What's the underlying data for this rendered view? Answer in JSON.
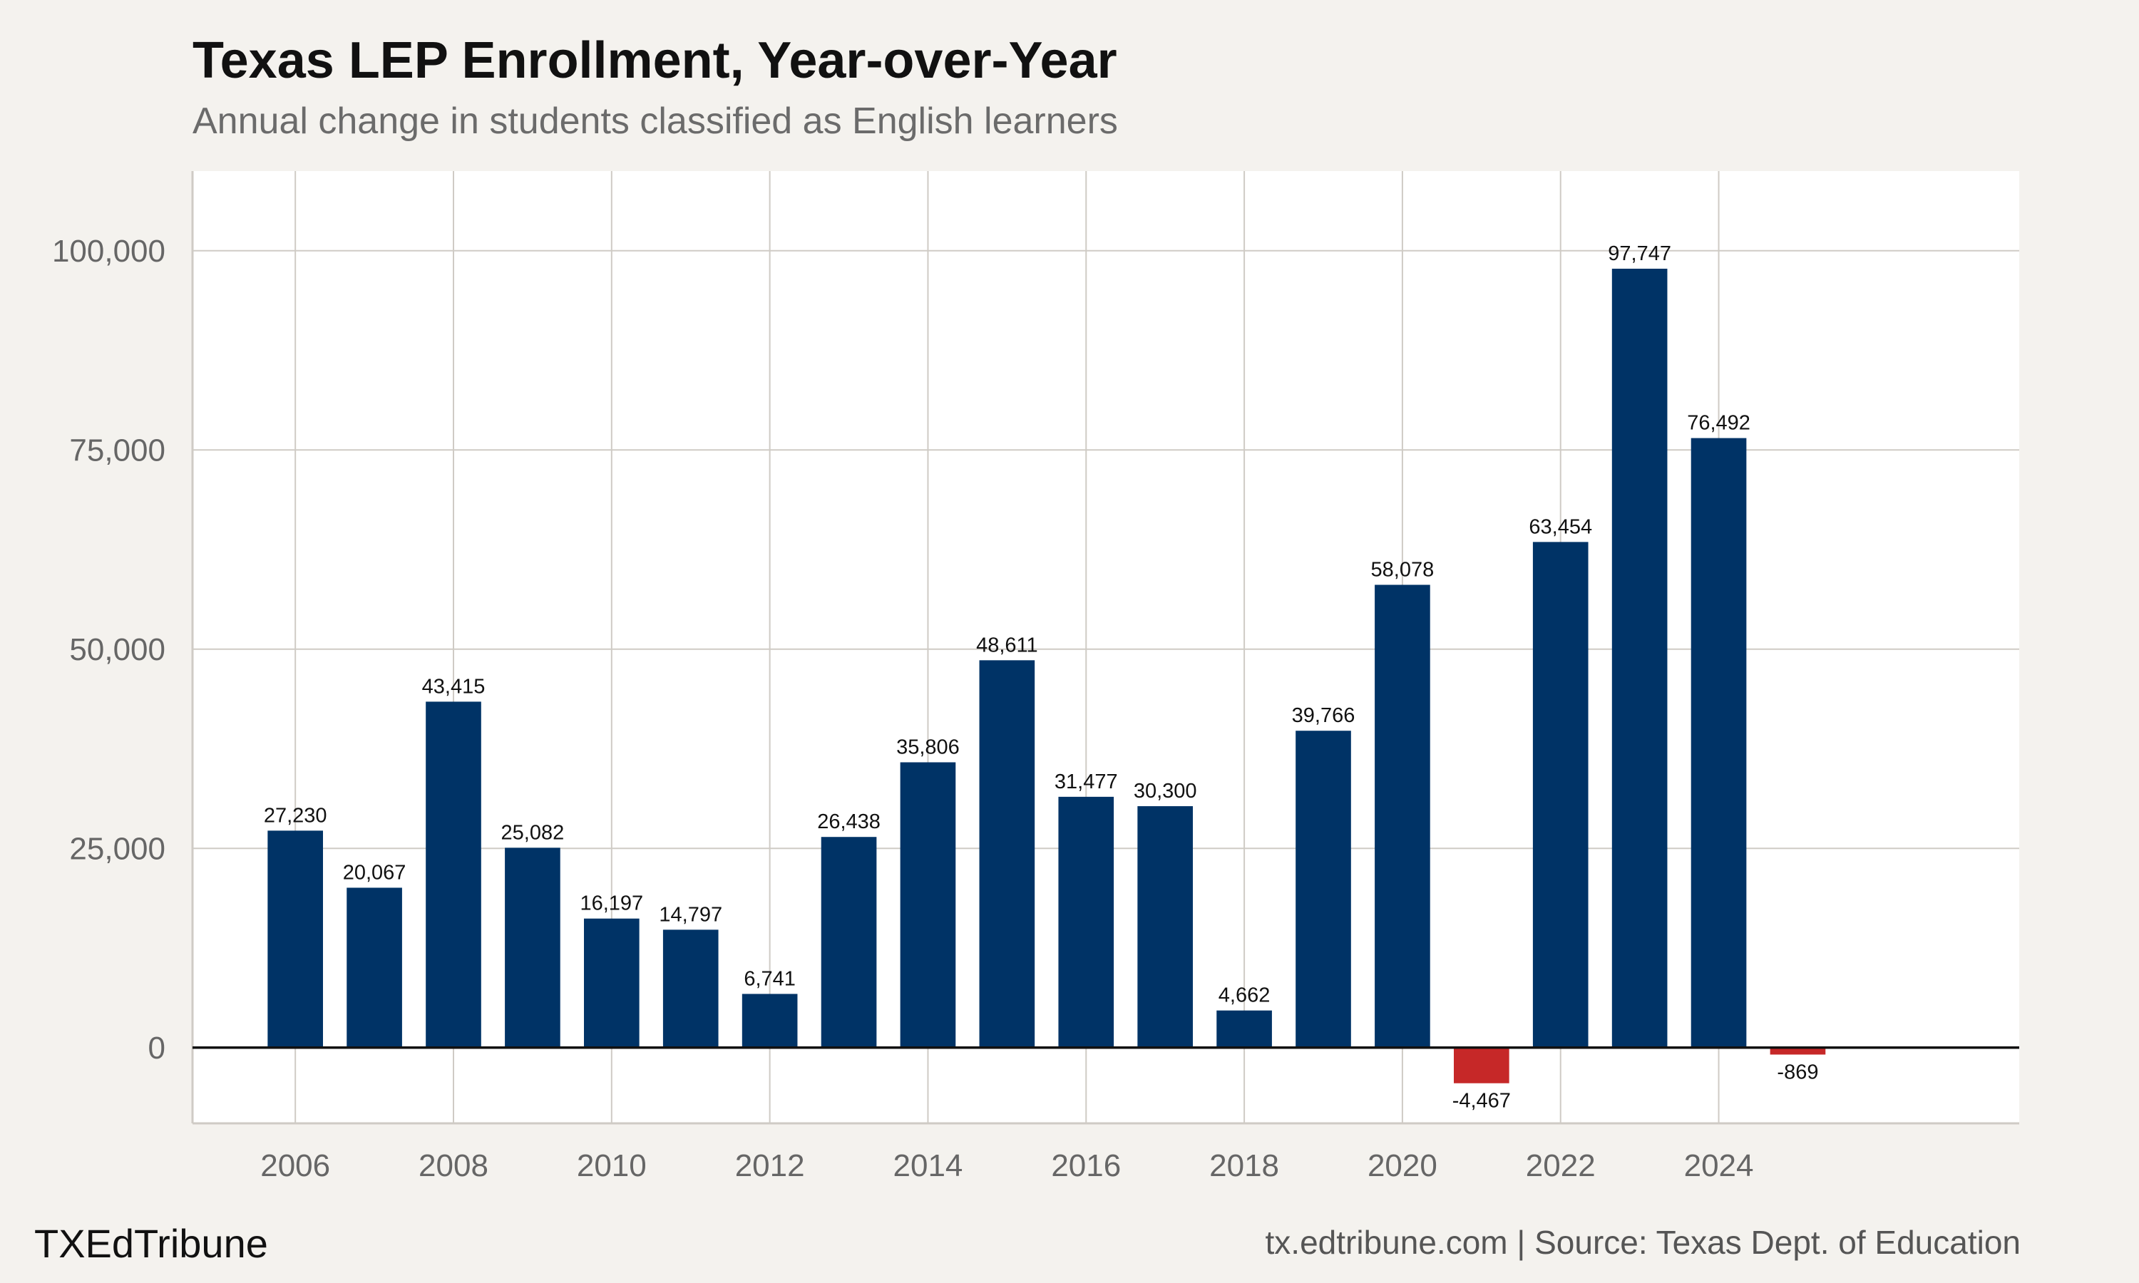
{
  "title": "Texas LEP Enrollment, Year-over-Year",
  "subtitle": "Annual change in students classified as English learners",
  "branding": "TXEdTribune",
  "source": "tx.edtribune.com | Source: Texas Dept. of Education",
  "chart_data": {
    "type": "bar",
    "categories": [
      2006,
      2007,
      2008,
      2009,
      2010,
      2011,
      2012,
      2013,
      2014,
      2015,
      2016,
      2017,
      2018,
      2019,
      2020,
      2021,
      2022,
      2023,
      2024,
      2025
    ],
    "values": [
      27230,
      20067,
      43415,
      25082,
      16197,
      14797,
      6741,
      26438,
      35806,
      48611,
      31477,
      30300,
      4662,
      39766,
      58078,
      -4467,
      63454,
      97747,
      76492,
      -869
    ],
    "data_labels": [
      "27,230",
      "20,067",
      "43,415",
      "25,082",
      "16,197",
      "14,797",
      "6,741",
      "26,438",
      "35,806",
      "48,611",
      "31,477",
      "30,300",
      "4,662",
      "39,766",
      "58,078",
      "-4,467",
      "63,454",
      "97,747",
      "76,492",
      "-869"
    ],
    "title": "Texas LEP Enrollment, Year-over-Year",
    "subtitle": "Annual change in students classified as English learners",
    "xlabel": "",
    "ylabel": "",
    "xlim": [
      2004.7,
      2027.8
    ],
    "ylim": [
      -9500,
      110000
    ],
    "xticks": [
      2006,
      2008,
      2010,
      2012,
      2014,
      2016,
      2018,
      2020,
      2022,
      2024
    ],
    "yticks": [
      0,
      25000,
      50000,
      75000,
      100000
    ],
    "ytick_labels": [
      "0",
      "25,000",
      "50,000",
      "75,000",
      "100,000"
    ],
    "grid": true,
    "colors": {
      "positive": "#003366",
      "negative": "#c62828",
      "grid": "#cfcbc5",
      "zero_line": "#111111",
      "panel": "#ffffff",
      "background": "#f4f2ee"
    }
  }
}
